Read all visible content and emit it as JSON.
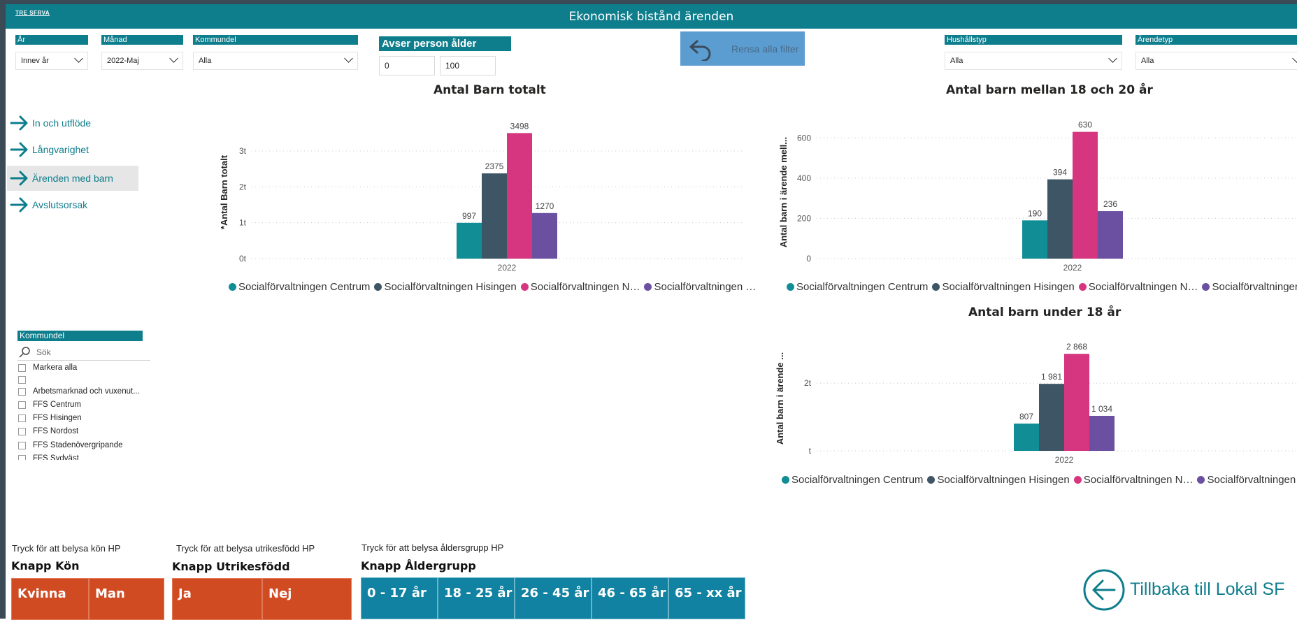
{
  "header": {
    "logo": "TRE SFRVA",
    "title": "Ekonomisk bistånd ärenden"
  },
  "filters": {
    "year": {
      "label": "År",
      "value": "Innev år"
    },
    "month": {
      "label": "Månad",
      "value": "2022-Maj"
    },
    "district": {
      "label": "Kommundel",
      "value": "Alla"
    },
    "household": {
      "label": "Hushållstyp",
      "value": "Alla"
    },
    "case_type": {
      "label": "Ärendetyp",
      "value": "Alla"
    },
    "age": {
      "label": "Avser person ålder",
      "min": "0",
      "max": "100"
    }
  },
  "clear_button": {
    "label": "Rensa alla filter",
    "icon": "undo-arrow-icon"
  },
  "nav": [
    {
      "label": "In och utflöde",
      "icon": "arrow-right-icon",
      "active": false
    },
    {
      "label": "Långvarighet",
      "icon": "arrow-right-icon",
      "active": false
    },
    {
      "label": "Ärenden med barn",
      "icon": "arrow-right-icon",
      "active": true
    },
    {
      "label": "Avslutsorsak",
      "icon": "arrow-right-icon",
      "active": false
    }
  ],
  "slicer": {
    "label": "Kommundel",
    "search_placeholder": "Sök",
    "items": [
      "Markera alla",
      "",
      "Arbetsmarknad och vuxenut...",
      "FFS Centrum",
      "FFS Hisingen",
      "FFS Nordost",
      "FFS Stadenövergripande",
      "FFS Sydväst"
    ]
  },
  "colors": {
    "teal": "#0e7d8c",
    "series": [
      "#118d96",
      "#3e5565",
      "#d6357f",
      "#6b4fa0"
    ],
    "orange": "#d04a22",
    "button_teal": "#1282a2",
    "clear_button": "#5b9dd1"
  },
  "chart_data": [
    {
      "type": "bar",
      "title": "Antal Barn totalt",
      "ylabel": "*Antal Barn totalt",
      "categories": [
        "2022"
      ],
      "series": [
        {
          "name": "Socialförvaltningen Centrum",
          "values": [
            997
          ]
        },
        {
          "name": "Socialförvaltningen Hisingen",
          "values": [
            2375
          ]
        },
        {
          "name": "Socialförvaltningen N…",
          "values": [
            3498
          ]
        },
        {
          "name": "Socialförvaltningen …",
          "values": [
            1270
          ]
        }
      ],
      "data_labels": [
        "997",
        "2375",
        "3498",
        "1270"
      ],
      "yticks": [
        {
          "v": 0,
          "label": "0t"
        },
        {
          "v": 1000,
          "label": "1t"
        },
        {
          "v": 2000,
          "label": "2t"
        },
        {
          "v": 3000,
          "label": "3t"
        }
      ],
      "ylim": [
        0,
        3700
      ],
      "grid": true,
      "legend_position": "bottom"
    },
    {
      "type": "bar",
      "title": "Antal barn mellan 18 och 20 år",
      "ylabel": "Antal barn i ärende mell...",
      "categories": [
        "2022"
      ],
      "series": [
        {
          "name": "Socialförvaltningen Centrum",
          "values": [
            190
          ]
        },
        {
          "name": "Socialförvaltningen Hisingen",
          "values": [
            394
          ]
        },
        {
          "name": "Socialförvaltningen N…",
          "values": [
            630
          ]
        },
        {
          "name": "Socialförvaltningen …",
          "values": [
            236
          ]
        }
      ],
      "data_labels": [
        "190",
        "394",
        "630",
        "236"
      ],
      "yticks": [
        {
          "v": 0,
          "label": "0"
        },
        {
          "v": 200,
          "label": "200"
        },
        {
          "v": 400,
          "label": "400"
        },
        {
          "v": 600,
          "label": "600"
        }
      ],
      "ylim": [
        0,
        660
      ],
      "grid": true,
      "legend_position": "bottom"
    },
    {
      "type": "bar",
      "title": "Antal barn under 18 år",
      "ylabel": "Antal barn i ärende ...",
      "categories": [
        "2022"
      ],
      "series": [
        {
          "name": "Socialförvaltningen Centrum",
          "values": [
            807
          ]
        },
        {
          "name": "Socialförvaltningen Hisingen",
          "values": [
            1981
          ]
        },
        {
          "name": "Socialförvaltningen N…",
          "values": [
            2868
          ]
        },
        {
          "name": "Socialförvaltningen …",
          "values": [
            1034
          ]
        }
      ],
      "data_labels": [
        "807",
        "1 981",
        "2 868",
        "1 034"
      ],
      "yticks": [
        {
          "v": 0,
          "label": "t"
        },
        {
          "v": 2000,
          "label": "2t"
        }
      ],
      "ylim": [
        0,
        3100
      ],
      "grid": true,
      "legend_position": "bottom"
    }
  ],
  "gender_group": {
    "hint": "Tryck för att belysa kön HP",
    "title": "Knapp Kön",
    "buttons": [
      "Kvinna",
      "Man"
    ]
  },
  "origin_group": {
    "hint": "Tryck för att belysa utrikesfödd  HP",
    "title": "Knapp Utrikesfödd",
    "buttons": [
      "Ja",
      "Nej"
    ]
  },
  "age_group": {
    "hint": "Tryck för att belysa åldersgrupp HP",
    "title": "Knapp Åldergrupp",
    "buttons": [
      "0 - 17 år",
      "18 - 25 år",
      "26 - 45 år",
      "46 - 65 år",
      "65 - xx år"
    ]
  },
  "back_link": {
    "label": "Tillbaka till Lokal SF",
    "icon": "arrow-left-circle-icon"
  }
}
